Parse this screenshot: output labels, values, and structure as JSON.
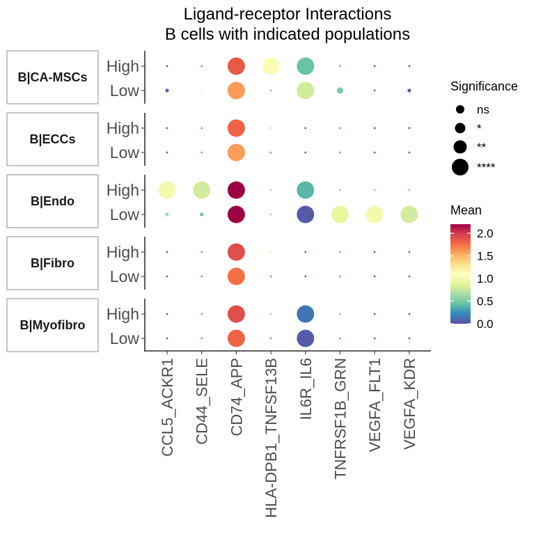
{
  "chart_data": {
    "type": "scatter",
    "title": "Ligand-receptor Interactions",
    "subtitle": "B cells with indicated populations",
    "x_categories": [
      "CCL5_ACKR1",
      "CD44_SELE",
      "CD74_APP",
      "HLA-DPB1_TNFSF13B",
      "IL6R_IL6",
      "TNFRSF1B_GRN",
      "VEGFA_FLT1",
      "VEGFA_KDR"
    ],
    "row_levels": [
      "High",
      "Low"
    ],
    "facets": [
      {
        "label": "B|CA-MSCs",
        "rows": {
          "High": {
            "mean": [
              0.0,
              0.4,
              1.85,
              1.05,
              0.45,
              0.4,
              0.1,
              0.1
            ],
            "significance": [
              "none",
              "none",
              "****",
              "****",
              "****",
              "none",
              "none",
              "none"
            ]
          },
          "Low": {
            "mean": [
              0.1,
              1.2,
              1.6,
              0.5,
              0.8,
              0.5,
              0.1,
              0.05
            ],
            "significance": [
              "ns",
              "none",
              "****",
              "none",
              "****",
              "**",
              "none",
              "ns"
            ]
          }
        }
      },
      {
        "label": "B|ECCs",
        "rows": {
          "High": {
            "mean": [
              0.1,
              0.4,
              1.8,
              0.8,
              0.1,
              0.4,
              0.1,
              0.1
            ],
            "significance": [
              "none",
              "none",
              "****",
              "none",
              "none",
              "none",
              "none",
              "none"
            ]
          },
          "Low": {
            "mean": [
              0.1,
              0.4,
              1.6,
              0.4,
              0.1,
              0.4,
              0.1,
              0.1
            ],
            "significance": [
              "none",
              "none",
              "****",
              "none",
              "none",
              "none",
              "none",
              "none"
            ]
          }
        }
      },
      {
        "label": "B|Endo",
        "rows": {
          "High": {
            "mean": [
              1.0,
              0.8,
              2.2,
              0.7,
              0.4,
              0.6,
              0.6,
              0.5
            ],
            "significance": [
              "****",
              "****",
              "****",
              "none",
              "****",
              "none",
              "none",
              "none"
            ]
          },
          "Low": {
            "mean": [
              0.6,
              0.45,
              2.2,
              0.6,
              0.05,
              0.9,
              1.0,
              0.8
            ],
            "significance": [
              "ns",
              "ns",
              "****",
              "none",
              "****",
              "****",
              "****",
              "****"
            ]
          }
        }
      },
      {
        "label": "B|Fibro",
        "rows": {
          "High": {
            "mean": [
              0.1,
              0.4,
              1.9,
              0.9,
              0.1,
              0.4,
              0.1,
              0.1
            ],
            "significance": [
              "none",
              "none",
              "****",
              "none",
              "none",
              "none",
              "none",
              "none"
            ]
          },
          "Low": {
            "mean": [
              0.1,
              0.4,
              1.75,
              0.4,
              0.1,
              0.4,
              0.1,
              0.1
            ],
            "significance": [
              "none",
              "none",
              "****",
              "none",
              "none",
              "none",
              "none",
              "none"
            ]
          }
        }
      },
      {
        "label": "B|Myofibro",
        "rows": {
          "High": {
            "mean": [
              0.1,
              0.4,
              1.9,
              0.7,
              0.15,
              0.5,
              0.1,
              0.1
            ],
            "significance": [
              "none",
              "none",
              "****",
              "none",
              "****",
              "none",
              "none",
              "none"
            ]
          },
          "Low": {
            "mean": [
              0.1,
              0.4,
              1.8,
              0.4,
              0.05,
              0.4,
              0.1,
              0.1
            ],
            "significance": [
              "none",
              "none",
              "****",
              "none",
              "****",
              "none",
              "none",
              "none"
            ]
          }
        }
      }
    ],
    "legend": {
      "size_title": "Significance",
      "size_levels": [
        "ns",
        "*",
        "**",
        "****"
      ],
      "color_title": "Mean",
      "color_ticks": [
        "2.0",
        "1.5",
        "1.0",
        "0.5",
        "0.0"
      ],
      "color_tick_values": [
        2.0,
        1.5,
        1.0,
        0.5,
        0.0
      ],
      "color_range": [
        0,
        2.2
      ],
      "palette": [
        "#5e4fa2",
        "#3288bd",
        "#66c2a5",
        "#abdda4",
        "#e6f598",
        "#ffffbf",
        "#fee08b",
        "#fdae61",
        "#f46d43",
        "#d53e4f",
        "#9e0142"
      ]
    }
  }
}
